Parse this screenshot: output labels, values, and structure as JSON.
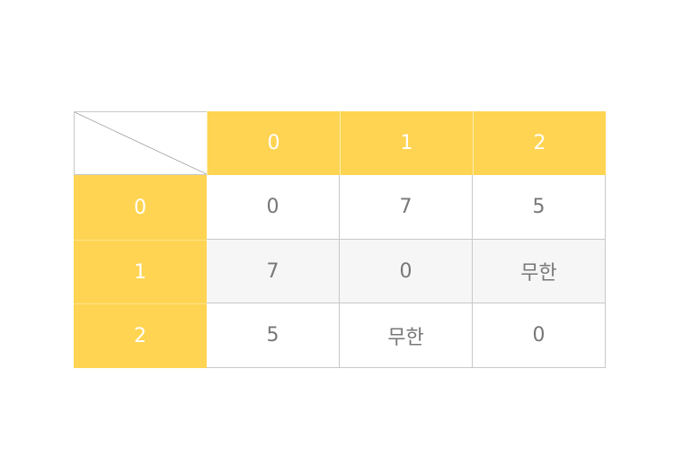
{
  "matrix": {
    "column_headers": [
      "0",
      "1",
      "2"
    ],
    "row_headers": [
      "0",
      "1",
      "2"
    ],
    "rows": [
      [
        "0",
        "7",
        "5"
      ],
      [
        "7",
        "0",
        "무한"
      ],
      [
        "5",
        "무한",
        "0"
      ]
    ]
  },
  "colors": {
    "header_background": "#FFD452",
    "header_text": "#FFFFFF",
    "cell_text": "#777777",
    "stripe_background": "#F6F6F6",
    "grid_line": "#C8C8C8"
  }
}
